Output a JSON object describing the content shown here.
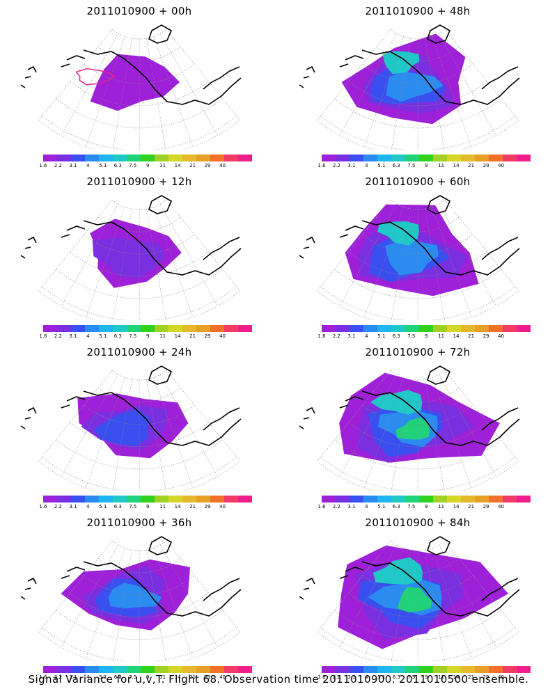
{
  "caption": "Signal Variance for u,v,T. Flight 68. Observation time 2011010900. 2011010500 ensemble.",
  "colorbar": {
    "labels": [
      "1.6",
      "2.2",
      "3.1",
      "4",
      "5.1",
      "6.3",
      "7.5",
      "9",
      "11",
      "14",
      "21",
      "29",
      "40"
    ],
    "colors": [
      "#9e20d8",
      "#7a30e0",
      "#3a4ff0",
      "#2a8cf0",
      "#20b4f0",
      "#20c8c8",
      "#20d27a",
      "#30d21e",
      "#a0d226",
      "#d6d628",
      "#e6b82c",
      "#e6a028",
      "#f0702a",
      "#f03c64",
      "#f01e8c"
    ]
  },
  "panels": [
    {
      "title": "2011010900 + 00h",
      "level": 1
    },
    {
      "title": "2011010900 + 48h",
      "level": 5
    },
    {
      "title": "2011010900 + 12h",
      "level": 2
    },
    {
      "title": "2011010900 + 60h",
      "level": 6
    },
    {
      "title": "2011010900 + 24h",
      "level": 3
    },
    {
      "title": "2011010900 + 72h",
      "level": 7
    },
    {
      "title": "2011010900 + 36h",
      "level": 4
    },
    {
      "title": "2011010900 + 84h",
      "level": 8
    }
  ]
}
